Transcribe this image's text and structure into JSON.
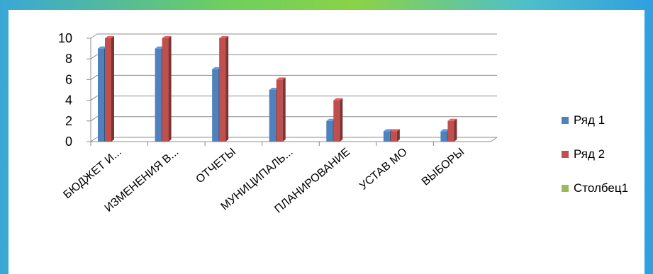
{
  "chart_data": {
    "type": "bar",
    "categories": [
      "БЮДЖЕТ И...",
      "ИЗМЕНЕНИЯ В...",
      "ОТЧЕТЫ",
      "МУНИЦИПАЛЬ...",
      "ПЛАНИРОВАНИЕ",
      "УСТАВ МО",
      "ВЫБОРЫ"
    ],
    "series": [
      {
        "name": "Ряд 1",
        "color": "#4f81bd",
        "values": [
          9,
          9,
          7,
          5,
          2,
          1,
          1
        ]
      },
      {
        "name": "Ряд 2",
        "color": "#c0504d",
        "values": [
          10,
          10,
          10,
          6,
          4,
          1,
          2
        ]
      },
      {
        "name": "Столбец1",
        "color": "#9bbb59",
        "values": [
          0,
          0,
          0,
          0,
          0,
          0,
          0
        ]
      }
    ],
    "ylim": [
      0,
      10
    ],
    "yticks": [
      0,
      2,
      4,
      6,
      8,
      10
    ],
    "grid": true,
    "legend_position": "right",
    "style": "3d-column"
  }
}
